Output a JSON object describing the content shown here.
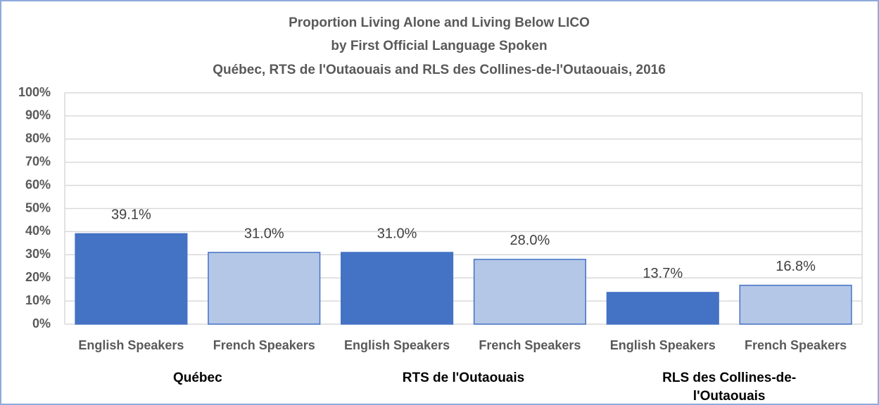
{
  "chart_data": {
    "type": "bar",
    "title": [
      "Proportion Living Alone and Living Below LICO",
      "by First Official Language Spoken",
      "Québec, RTS de l'Outaouais and RLS des Collines-de-l'Outaouais,  2016"
    ],
    "categories": [
      "English Speakers",
      "French Speakers",
      "English Speakers",
      "French Speakers",
      "English Speakers",
      "French Speakers"
    ],
    "groups": [
      "Québec",
      "RTS de l'Outaouais",
      "RLS des Collines-de-l'Outaouais"
    ],
    "values": [
      39.1,
      31.0,
      31.0,
      28.0,
      13.7,
      16.8
    ],
    "value_labels": [
      "39.1%",
      "31.0%",
      "31.0%",
      "28.0%",
      "13.7%",
      "16.8%"
    ],
    "colors": [
      "#4472c4",
      "#b4c7e7",
      "#4472c4",
      "#b4c7e7",
      "#4472c4",
      "#b4c7e7"
    ],
    "ylim": [
      0,
      100
    ],
    "yticks": [
      {
        "value": 0,
        "label": "0%"
      },
      {
        "value": 10,
        "label": "10%"
      },
      {
        "value": 20,
        "label": "20%"
      },
      {
        "value": 30,
        "label": "30%"
      },
      {
        "value": 40,
        "label": "40%"
      },
      {
        "value": 50,
        "label": "50%"
      },
      {
        "value": 60,
        "label": "60%"
      },
      {
        "value": 70,
        "label": "70%"
      },
      {
        "value": 80,
        "label": "80%"
      },
      {
        "value": 90,
        "label": "90%"
      },
      {
        "value": 100,
        "label": "100%"
      }
    ],
    "grid": true
  }
}
